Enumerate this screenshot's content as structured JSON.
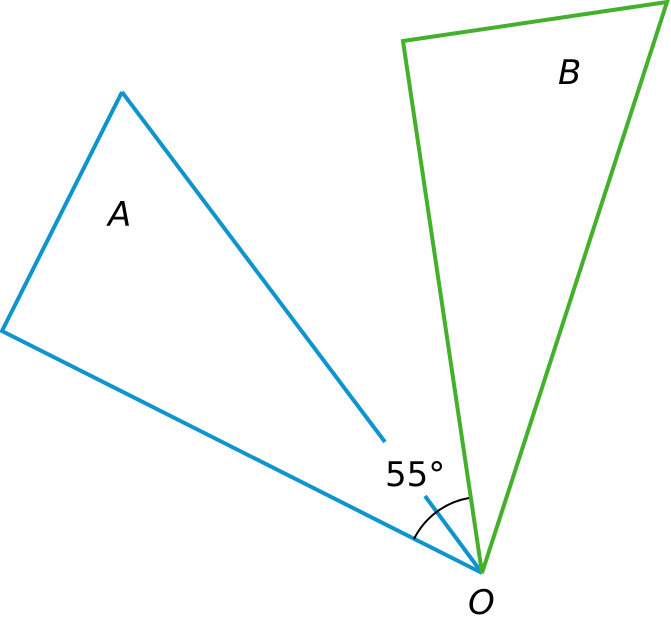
{
  "labels": {
    "triangle_a": "A",
    "triangle_b": "B",
    "vertex_o": "O",
    "angle": "55°"
  },
  "colors": {
    "triangle_a": "#0f94cc",
    "triangle_b": "#44b02c",
    "arc": "#000000"
  }
}
